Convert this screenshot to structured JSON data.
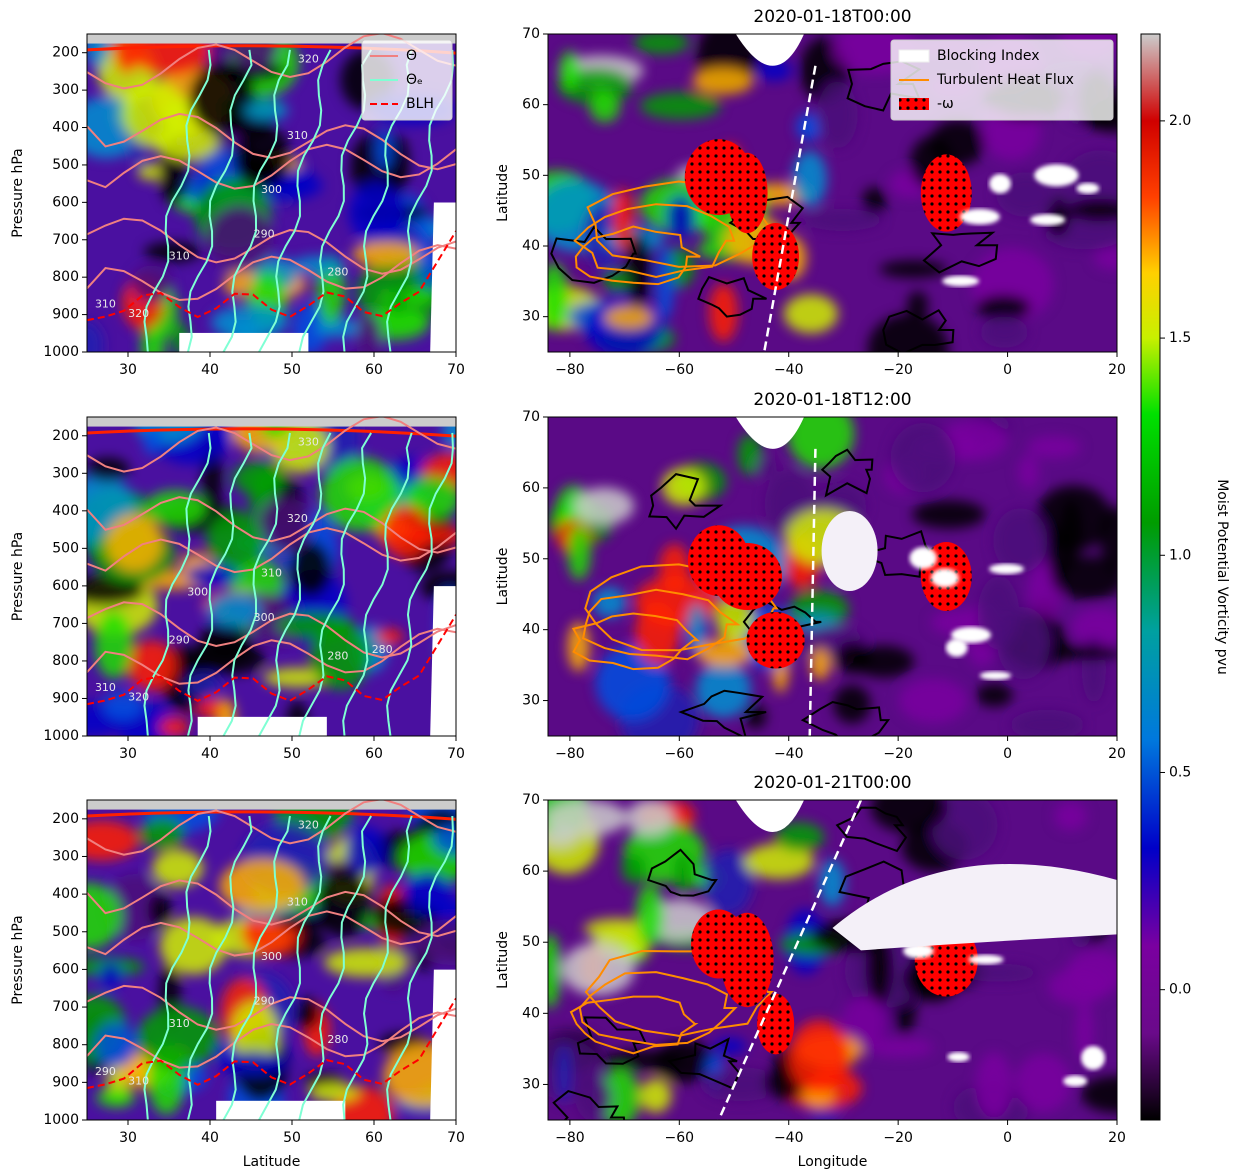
{
  "chart_data": [
    {
      "type": "cross-section",
      "ylabel": "Pressure hPa",
      "xlim": [
        25,
        70
      ],
      "xticks": [
        30,
        40,
        50,
        60,
        70
      ],
      "ylim": [
        1000,
        150
      ],
      "yticks": [
        200,
        300,
        400,
        500,
        600,
        700,
        800,
        900,
        1000
      ],
      "legend": "upper right",
      "series": [
        {
          "name": "Θ",
          "color": "#f08080"
        },
        {
          "name": "Θₑ",
          "color": "#7fffd4"
        },
        {
          "name": "BLH",
          "color": "#ff0000"
        }
      ],
      "contour_labels": [
        320,
        310,
        300,
        290,
        310,
        280,
        310,
        320
      ]
    },
    {
      "type": "map",
      "title": "2020-01-18T00:00",
      "ylabel": "Latitude",
      "xlim": [
        -84,
        20
      ],
      "xticks": [
        {
          "value": -80,
          "label": "−80"
        },
        {
          "value": -60,
          "label": "−60"
        },
        {
          "value": -40,
          "label": "−40"
        },
        {
          "value": -20,
          "label": "−20"
        },
        0,
        20
      ],
      "ylim": [
        25,
        70
      ],
      "yticks": [
        30,
        40,
        50,
        60,
        70
      ],
      "legend": "upper right",
      "series": [
        {
          "name": "Blocking Index",
          "color": "#ffffff"
        },
        {
          "name": "Turbulent Heat Flux",
          "color": "#ff8c00"
        },
        {
          "name": "-ω",
          "color": "#ff0000"
        }
      ]
    },
    {
      "type": "cross-section",
      "ylabel": "Pressure hPa",
      "xlim": [
        25,
        70
      ],
      "xticks": [
        30,
        40,
        50,
        60,
        70
      ],
      "ylim": [
        1000,
        150
      ],
      "yticks": [
        200,
        300,
        400,
        500,
        600,
        700,
        800,
        900,
        1000
      ],
      "contour_labels": [
        330,
        320,
        310,
        300,
        290,
        280,
        310,
        320,
        300,
        280
      ]
    },
    {
      "type": "map",
      "title": "2020-01-18T12:00",
      "ylabel": "Latitude",
      "xlim": [
        -84,
        20
      ],
      "xticks": [
        {
          "value": -80,
          "label": "−80"
        },
        {
          "value": -60,
          "label": "−60"
        },
        {
          "value": -40,
          "label": "−40"
        },
        {
          "value": -20,
          "label": "−20"
        },
        0,
        20
      ],
      "ylim": [
        25,
        70
      ],
      "yticks": [
        30,
        40,
        50,
        60,
        70
      ]
    },
    {
      "type": "cross-section",
      "ylabel": "Pressure hPa",
      "xlabel": "Latitude",
      "xlim": [
        25,
        70
      ],
      "xticks": [
        30,
        40,
        50,
        60,
        70
      ],
      "ylim": [
        1000,
        150
      ],
      "yticks": [
        200,
        300,
        400,
        500,
        600,
        700,
        800,
        900,
        1000
      ],
      "contour_labels": [
        320,
        310,
        300,
        290,
        310,
        280,
        290,
        310
      ]
    },
    {
      "type": "map",
      "title": "2020-01-21T00:00",
      "ylabel": "Latitude",
      "xlabel": "Longitude",
      "xlim": [
        -84,
        20
      ],
      "xticks": [
        {
          "value": -80,
          "label": "−80"
        },
        {
          "value": -60,
          "label": "−60"
        },
        {
          "value": -40,
          "label": "−40"
        },
        {
          "value": -20,
          "label": "−20"
        },
        0,
        20
      ],
      "ylim": [
        25,
        70
      ],
      "yticks": [
        30,
        40,
        50,
        60,
        70
      ]
    },
    {
      "type": "colorbar",
      "label": "Moist Potential Vorticity pvu",
      "ylim": [
        -0.3,
        2.2
      ],
      "yticks": [
        {
          "value": 0,
          "label": "0.0"
        },
        0.5,
        {
          "value": 1,
          "label": "1.0"
        },
        1.5,
        {
          "value": 2,
          "label": "2.0"
        }
      ]
    }
  ]
}
